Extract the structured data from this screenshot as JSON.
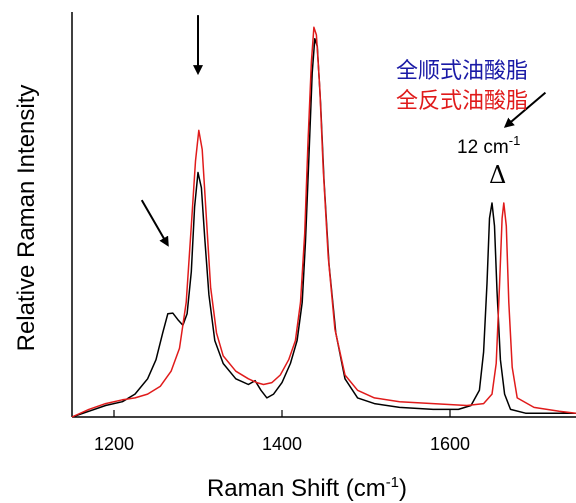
{
  "chart_data": {
    "type": "line",
    "xlabel": "Raman Shift (cm",
    "xlabel_sup": "-1",
    "xlabel_suffix": ")",
    "ylabel": "Relative Raman Intensity",
    "xlim": [
      1150,
      1750
    ],
    "ylim": [
      0,
      1.06
    ],
    "x_ticks": [
      1200,
      1400,
      1600
    ],
    "y_ticks_shown": false,
    "grid": false,
    "legend_position": "top-right",
    "series": [
      {
        "name": "全顺式油酸脂",
        "color": "#000000",
        "legend_color": "#1a1aa6",
        "points": [
          [
            1150,
            0.0
          ],
          [
            1170,
            0.015
          ],
          [
            1190,
            0.03
          ],
          [
            1210,
            0.04
          ],
          [
            1225,
            0.06
          ],
          [
            1240,
            0.1
          ],
          [
            1250,
            0.15
          ],
          [
            1258,
            0.22
          ],
          [
            1264,
            0.27
          ],
          [
            1270,
            0.272
          ],
          [
            1276,
            0.255
          ],
          [
            1282,
            0.24
          ],
          [
            1287,
            0.27
          ],
          [
            1292,
            0.38
          ],
          [
            1296,
            0.55
          ],
          [
            1300,
            0.64
          ],
          [
            1304,
            0.6
          ],
          [
            1308,
            0.47
          ],
          [
            1313,
            0.32
          ],
          [
            1320,
            0.2
          ],
          [
            1330,
            0.14
          ],
          [
            1345,
            0.1
          ],
          [
            1360,
            0.085
          ],
          [
            1368,
            0.095
          ],
          [
            1375,
            0.07
          ],
          [
            1382,
            0.05
          ],
          [
            1390,
            0.06
          ],
          [
            1400,
            0.09
          ],
          [
            1410,
            0.14
          ],
          [
            1418,
            0.2
          ],
          [
            1424,
            0.3
          ],
          [
            1428,
            0.46
          ],
          [
            1432,
            0.68
          ],
          [
            1436,
            0.9
          ],
          [
            1439,
            0.99
          ],
          [
            1442,
            0.97
          ],
          [
            1446,
            0.82
          ],
          [
            1450,
            0.62
          ],
          [
            1456,
            0.4
          ],
          [
            1464,
            0.22
          ],
          [
            1475,
            0.1
          ],
          [
            1490,
            0.05
          ],
          [
            1510,
            0.035
          ],
          [
            1540,
            0.025
          ],
          [
            1580,
            0.02
          ],
          [
            1610,
            0.02
          ],
          [
            1625,
            0.03
          ],
          [
            1635,
            0.07
          ],
          [
            1640,
            0.17
          ],
          [
            1644,
            0.35
          ],
          [
            1647,
            0.52
          ],
          [
            1650,
            0.56
          ],
          [
            1653,
            0.5
          ],
          [
            1656,
            0.33
          ],
          [
            1660,
            0.15
          ],
          [
            1665,
            0.06
          ],
          [
            1672,
            0.02
          ],
          [
            1690,
            0.01
          ],
          [
            1750,
            0.01
          ]
        ]
      },
      {
        "name": "全反式油酸脂",
        "color": "#e01b1b",
        "legend_color": "#e01b1b",
        "points": [
          [
            1150,
            0.0
          ],
          [
            1170,
            0.02
          ],
          [
            1190,
            0.035
          ],
          [
            1210,
            0.045
          ],
          [
            1225,
            0.05
          ],
          [
            1240,
            0.06
          ],
          [
            1255,
            0.08
          ],
          [
            1268,
            0.12
          ],
          [
            1278,
            0.18
          ],
          [
            1286,
            0.3
          ],
          [
            1292,
            0.5
          ],
          [
            1297,
            0.67
          ],
          [
            1301,
            0.75
          ],
          [
            1305,
            0.7
          ],
          [
            1310,
            0.52
          ],
          [
            1315,
            0.34
          ],
          [
            1322,
            0.22
          ],
          [
            1330,
            0.16
          ],
          [
            1345,
            0.12
          ],
          [
            1360,
            0.1
          ],
          [
            1370,
            0.09
          ],
          [
            1378,
            0.085
          ],
          [
            1388,
            0.09
          ],
          [
            1398,
            0.11
          ],
          [
            1408,
            0.15
          ],
          [
            1416,
            0.2
          ],
          [
            1422,
            0.3
          ],
          [
            1427,
            0.48
          ],
          [
            1431,
            0.72
          ],
          [
            1435,
            0.93
          ],
          [
            1438,
            1.02
          ],
          [
            1441,
            1.0
          ],
          [
            1445,
            0.86
          ],
          [
            1449,
            0.65
          ],
          [
            1455,
            0.42
          ],
          [
            1463,
            0.23
          ],
          [
            1475,
            0.11
          ],
          [
            1490,
            0.07
          ],
          [
            1510,
            0.05
          ],
          [
            1540,
            0.04
          ],
          [
            1580,
            0.035
          ],
          [
            1620,
            0.03
          ],
          [
            1640,
            0.035
          ],
          [
            1650,
            0.06
          ],
          [
            1655,
            0.14
          ],
          [
            1659,
            0.35
          ],
          [
            1662,
            0.52
          ],
          [
            1664,
            0.56
          ],
          [
            1667,
            0.5
          ],
          [
            1670,
            0.3
          ],
          [
            1674,
            0.13
          ],
          [
            1680,
            0.05
          ],
          [
            1700,
            0.025
          ],
          [
            1730,
            0.015
          ],
          [
            1750,
            0.01
          ]
        ]
      }
    ],
    "annotations": {
      "shift_label": "12 cm",
      "shift_label_sup": "-1",
      "delta_symbol": "Δ",
      "arrows": [
        {
          "target_x": 1264,
          "target_y": 0.45
        },
        {
          "target_x": 1300,
          "target_y": 0.9
        },
        {
          "target_x": 1666,
          "target_y": 0.76
        }
      ]
    }
  }
}
